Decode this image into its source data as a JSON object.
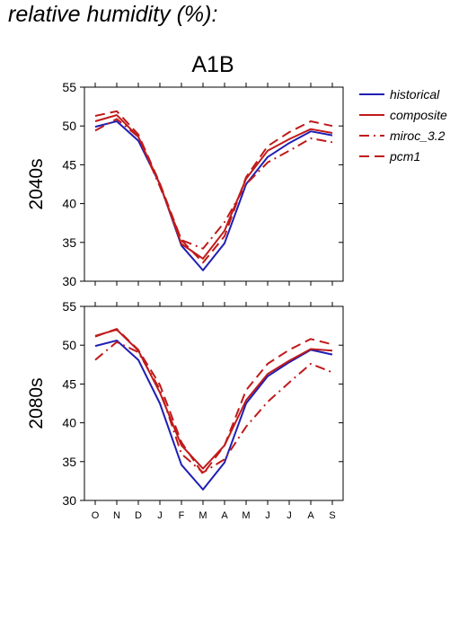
{
  "page": {
    "title": "relative humidity (%):"
  },
  "colors": {
    "historical": "#1f1fb4",
    "composite": "#c01a1a",
    "miroc": "#c01a1a",
    "pcm1": "#c01a1a",
    "axis": "#000000"
  },
  "chart_data": [
    {
      "type": "line",
      "title": "A1B",
      "ylabel": "2040s",
      "xlabel": "",
      "ylim": [
        30,
        55
      ],
      "yticks": [
        30,
        35,
        40,
        45,
        50,
        55
      ],
      "categories": [
        "O",
        "N",
        "D",
        "J",
        "F",
        "M",
        "A",
        "M",
        "J",
        "J",
        "A",
        "S"
      ],
      "grid": false,
      "legend": "right",
      "series": [
        {
          "name": "historical",
          "style": "solid",
          "values": [
            49.9,
            50.6,
            48.1,
            42.5,
            34.6,
            31.4,
            34.9,
            42.5,
            46.0,
            47.8,
            49.3,
            48.8
          ]
        },
        {
          "name": "composite",
          "style": "solid",
          "values": [
            50.6,
            51.4,
            48.6,
            42.5,
            34.8,
            32.9,
            36.5,
            43.2,
            46.8,
            48.3,
            49.6,
            49.1
          ]
        },
        {
          "name": "miroc_3.2",
          "style": "dashdot",
          "values": [
            49.4,
            50.9,
            48.6,
            42.2,
            35.3,
            34.2,
            37.6,
            42.5,
            45.3,
            46.8,
            48.4,
            47.9
          ]
        },
        {
          "name": "pcm1",
          "style": "dash",
          "values": [
            51.3,
            51.9,
            48.9,
            42.6,
            35.3,
            32.4,
            35.8,
            43.4,
            47.4,
            49.2,
            50.6,
            50.0
          ]
        }
      ]
    },
    {
      "type": "line",
      "title": "",
      "ylabel": "2080s",
      "xlabel": "",
      "ylim": [
        30,
        55
      ],
      "yticks": [
        30,
        35,
        40,
        45,
        50,
        55
      ],
      "categories": [
        "O",
        "N",
        "D",
        "J",
        "F",
        "M",
        "A",
        "M",
        "J",
        "J",
        "A",
        "S"
      ],
      "grid": false,
      "series": [
        {
          "name": "historical",
          "style": "solid",
          "values": [
            49.9,
            50.6,
            48.1,
            42.5,
            34.6,
            31.4,
            34.9,
            42.5,
            46.0,
            47.8,
            49.4,
            48.8
          ]
        },
        {
          "name": "composite",
          "style": "solid",
          "values": [
            51.2,
            52.0,
            49.3,
            43.9,
            37.1,
            34.1,
            37.1,
            42.9,
            46.3,
            48.0,
            49.5,
            49.3
          ]
        },
        {
          "name": "miroc_3.2",
          "style": "dashdot",
          "values": [
            48.1,
            50.4,
            49.1,
            44.3,
            36.0,
            33.6,
            35.3,
            39.5,
            42.7,
            45.2,
            47.6,
            46.5
          ]
        },
        {
          "name": "pcm1",
          "style": "dash",
          "values": [
            51.1,
            52.1,
            49.4,
            44.9,
            37.5,
            33.4,
            37.1,
            44.2,
            47.6,
            49.4,
            50.8,
            50.1
          ]
        }
      ]
    }
  ]
}
